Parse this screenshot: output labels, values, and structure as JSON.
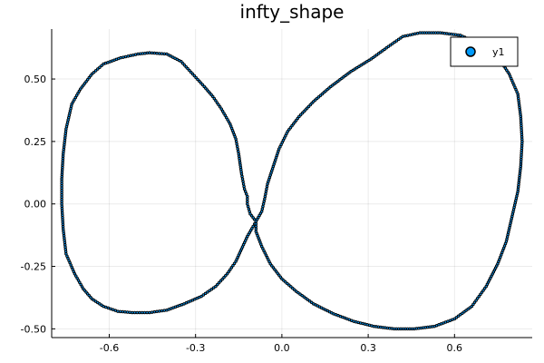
{
  "chart_data": {
    "type": "scatter",
    "title": "infty_shape",
    "xlabel": "",
    "ylabel": "",
    "xlim": [
      -0.8,
      0.87
    ],
    "ylim": [
      -0.535,
      0.7
    ],
    "xticks": [
      -0.6,
      -0.3,
      0.0,
      0.3,
      0.6
    ],
    "xtick_labels": [
      "-0.6",
      "-0.3",
      "0.0",
      "0.3",
      "0.6"
    ],
    "yticks": [
      -0.5,
      -0.25,
      0.0,
      0.25,
      0.5
    ],
    "ytick_labels": [
      "-0.50",
      "-0.25",
      "0.00",
      "0.25",
      "0.50"
    ],
    "grid": true,
    "legend": {
      "position": "top-right",
      "entries": [
        "y1"
      ]
    },
    "series": [
      {
        "name": "y1",
        "color": "#009AFA",
        "outline": "#000000",
        "points": [
          [
            -0.09,
            -0.07
          ],
          [
            -0.11,
            -0.04
          ],
          [
            -0.12,
            0.0
          ],
          [
            -0.12,
            0.03
          ],
          [
            -0.13,
            0.06
          ],
          [
            -0.14,
            0.12
          ],
          [
            -0.15,
            0.2
          ],
          [
            -0.16,
            0.26
          ],
          [
            -0.18,
            0.32
          ],
          [
            -0.21,
            0.38
          ],
          [
            -0.24,
            0.43
          ],
          [
            -0.27,
            0.47
          ],
          [
            -0.31,
            0.52
          ],
          [
            -0.35,
            0.57
          ],
          [
            -0.4,
            0.6
          ],
          [
            -0.46,
            0.605
          ],
          [
            -0.5,
            0.6
          ],
          [
            -0.56,
            0.585
          ],
          [
            -0.62,
            0.56
          ],
          [
            -0.66,
            0.52
          ],
          [
            -0.7,
            0.46
          ],
          [
            -0.73,
            0.4
          ],
          [
            -0.75,
            0.3
          ],
          [
            -0.76,
            0.2
          ],
          [
            -0.765,
            0.1
          ],
          [
            -0.765,
            0.0
          ],
          [
            -0.76,
            -0.1
          ],
          [
            -0.75,
            -0.2
          ],
          [
            -0.72,
            -0.28
          ],
          [
            -0.69,
            -0.34
          ],
          [
            -0.66,
            -0.38
          ],
          [
            -0.62,
            -0.41
          ],
          [
            -0.57,
            -0.43
          ],
          [
            -0.52,
            -0.435
          ],
          [
            -0.46,
            -0.435
          ],
          [
            -0.4,
            -0.425
          ],
          [
            -0.34,
            -0.4
          ],
          [
            -0.28,
            -0.37
          ],
          [
            -0.23,
            -0.33
          ],
          [
            -0.19,
            -0.28
          ],
          [
            -0.16,
            -0.23
          ],
          [
            -0.14,
            -0.18
          ],
          [
            -0.12,
            -0.13
          ],
          [
            -0.1,
            -0.09
          ],
          [
            -0.09,
            -0.07
          ],
          [
            -0.07,
            -0.03
          ],
          [
            -0.06,
            0.02
          ],
          [
            -0.05,
            0.08
          ],
          [
            -0.03,
            0.15
          ],
          [
            -0.01,
            0.22
          ],
          [
            0.02,
            0.29
          ],
          [
            0.06,
            0.35
          ],
          [
            0.11,
            0.41
          ],
          [
            0.17,
            0.47
          ],
          [
            0.24,
            0.53
          ],
          [
            0.31,
            0.58
          ],
          [
            0.37,
            0.63
          ],
          [
            0.42,
            0.67
          ],
          [
            0.48,
            0.685
          ],
          [
            0.55,
            0.685
          ],
          [
            0.62,
            0.675
          ],
          [
            0.69,
            0.64
          ],
          [
            0.75,
            0.59
          ],
          [
            0.79,
            0.52
          ],
          [
            0.82,
            0.44
          ],
          [
            0.83,
            0.35
          ],
          [
            0.835,
            0.25
          ],
          [
            0.83,
            0.15
          ],
          [
            0.82,
            0.05
          ],
          [
            0.8,
            -0.05
          ],
          [
            0.78,
            -0.15
          ],
          [
            0.75,
            -0.24
          ],
          [
            0.71,
            -0.33
          ],
          [
            0.66,
            -0.41
          ],
          [
            0.6,
            -0.46
          ],
          [
            0.53,
            -0.49
          ],
          [
            0.46,
            -0.5
          ],
          [
            0.39,
            -0.5
          ],
          [
            0.32,
            -0.49
          ],
          [
            0.25,
            -0.47
          ],
          [
            0.18,
            -0.44
          ],
          [
            0.11,
            -0.4
          ],
          [
            0.05,
            -0.35
          ],
          [
            0.0,
            -0.3
          ],
          [
            -0.04,
            -0.24
          ],
          [
            -0.07,
            -0.17
          ],
          [
            -0.09,
            -0.11
          ],
          [
            -0.09,
            -0.07
          ]
        ]
      }
    ]
  }
}
